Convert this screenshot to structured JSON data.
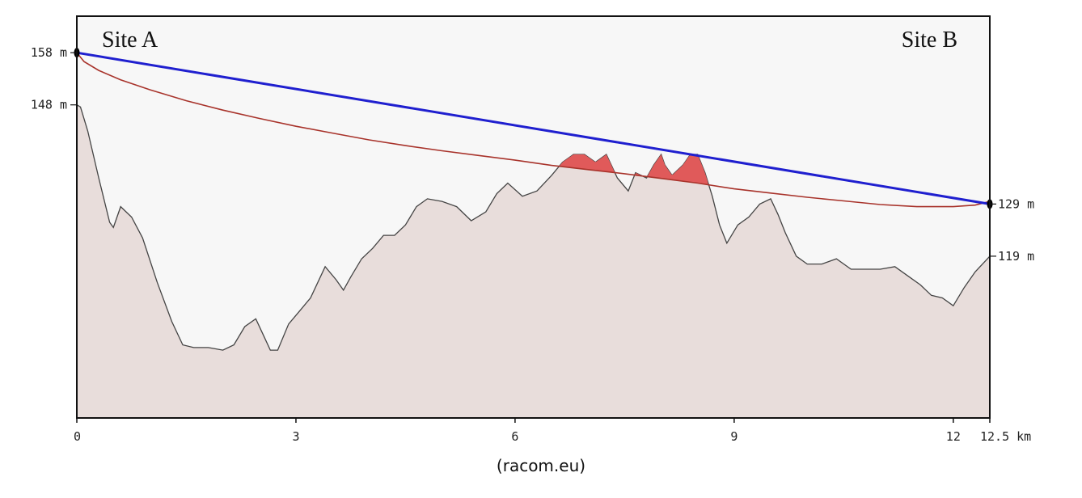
{
  "chart_data": {
    "type": "area",
    "title": "",
    "xlabel": "",
    "ylabel": "",
    "x_unit": "km",
    "x_ticks": [
      {
        "value": 0,
        "label": "0"
      },
      {
        "value": 3,
        "label": "3"
      },
      {
        "value": 6,
        "label": "6"
      },
      {
        "value": 9,
        "label": "9"
      },
      {
        "value": 12,
        "label": "12"
      },
      {
        "value": 12.5,
        "label": "12.5 km"
      }
    ],
    "left_ticks": [
      {
        "value": 158,
        "label": "158 m"
      },
      {
        "value": 148,
        "label": "148 m"
      }
    ],
    "right_ticks": [
      {
        "value": 129,
        "label": "129 m"
      },
      {
        "value": 119,
        "label": "119 m"
      }
    ],
    "xlim": [
      0,
      12.5
    ],
    "ylim": [
      88,
      165
    ],
    "sites": {
      "a": "Site A",
      "b": "Site B"
    },
    "line_of_sight": {
      "x": [
        0,
        12.5
      ],
      "y": [
        158,
        129
      ]
    },
    "fresnel_zone": {
      "x": [
        0,
        0.1,
        0.3,
        0.6,
        1.0,
        1.5,
        2.0,
        2.5,
        3.0,
        3.5,
        4.0,
        4.5,
        5.0,
        5.5,
        6.0,
        6.5,
        7.0,
        7.5,
        8.0,
        8.5,
        9.0,
        9.5,
        10.0,
        10.5,
        11.0,
        11.5,
        12.0,
        12.3,
        12.5
      ],
      "y": [
        158,
        156.3,
        154.6,
        152.8,
        150.9,
        148.8,
        147.0,
        145.4,
        143.9,
        142.6,
        141.3,
        140.2,
        139.2,
        138.3,
        137.4,
        136.4,
        135.6,
        134.8,
        133.9,
        133.0,
        131.9,
        131.1,
        130.3,
        129.6,
        128.9,
        128.5,
        128.5,
        128.8,
        129.5
      ]
    },
    "terrain": {
      "x": [
        0,
        0.05,
        0.15,
        0.3,
        0.45,
        0.5,
        0.6,
        0.75,
        0.9,
        1.1,
        1.3,
        1.45,
        1.6,
        1.8,
        2.0,
        2.15,
        2.3,
        2.45,
        2.55,
        2.65,
        2.75,
        2.9,
        3.05,
        3.2,
        3.4,
        3.55,
        3.65,
        3.75,
        3.9,
        4.05,
        4.2,
        4.35,
        4.5,
        4.65,
        4.8,
        5.0,
        5.2,
        5.4,
        5.6,
        5.75,
        5.9,
        6.1,
        6.3,
        6.5,
        6.65,
        6.8,
        6.95,
        7.1,
        7.25,
        7.4,
        7.55,
        7.65,
        7.8,
        7.9,
        8.0,
        8.05,
        8.15,
        8.3,
        8.4,
        8.5,
        8.6,
        8.7,
        8.8,
        8.9,
        9.05,
        9.2,
        9.35,
        9.5,
        9.6,
        9.7,
        9.85,
        10.0,
        10.2,
        10.4,
        10.6,
        10.8,
        11.0,
        11.2,
        11.4,
        11.55,
        11.7,
        11.85,
        12.0,
        12.15,
        12.3,
        12.5
      ],
      "y": [
        148,
        147.6,
        143,
        134,
        125.5,
        124.5,
        128.5,
        126.5,
        122.5,
        114,
        106.5,
        102,
        101.5,
        101.5,
        101,
        102,
        105.5,
        107,
        104,
        101,
        101,
        106,
        108.5,
        111,
        117,
        114.5,
        112.5,
        115,
        118.5,
        120.5,
        123,
        123,
        125,
        128.5,
        130,
        129.5,
        128.5,
        125.8,
        127.5,
        131,
        133,
        130.5,
        131.5,
        134.5,
        137,
        138.5,
        138.5,
        137,
        138.5,
        134,
        131.5,
        135,
        134,
        136.5,
        138.5,
        136.5,
        134.5,
        136.5,
        138.5,
        138.5,
        135,
        130.5,
        125,
        121.5,
        125,
        126.5,
        129,
        130,
        127,
        123.5,
        119,
        117.5,
        117.5,
        118.5,
        116.5,
        116.5,
        116.5,
        117,
        115,
        113.5,
        111.5,
        111,
        109.5,
        113,
        116,
        119
      ]
    },
    "colors": {
      "plot_background": "#f7f7f7",
      "terrain_fill": "#e8dddb",
      "terrain_line": "#444444",
      "line_of_sight": "#1f1fcf",
      "fresnel": "#a8332b",
      "obstruction": "#e05a5a"
    }
  },
  "credit": "(racom.eu)"
}
